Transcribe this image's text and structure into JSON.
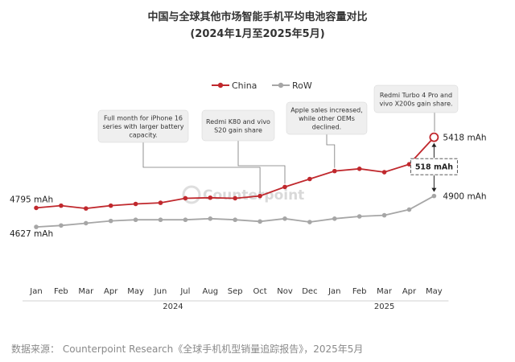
{
  "title": "中国与全球其他市场智能手机平均电池容量对比",
  "subtitle": "(2024年1月至2025年5月)",
  "watermark": "Counterpoint",
  "source": "数据来源： Counterpoint Research《全球手机机型销量追踪报告》，2025年5月",
  "chart_data": {
    "type": "line",
    "categories": [
      "Jan",
      "Feb",
      "Mar",
      "Apr",
      "May",
      "Jun",
      "Jul",
      "Aug",
      "Sep",
      "Oct",
      "Nov",
      "Dec",
      "Jan",
      "Feb",
      "Mar",
      "Apr",
      "May"
    ],
    "years": [
      {
        "label": "2024",
        "start": 0,
        "end": 11
      },
      {
        "label": "2025",
        "start": 12,
        "end": 16
      }
    ],
    "ylim": [
      4500,
      5600
    ],
    "grid": false,
    "legend_position": "top-left",
    "series": [
      {
        "name": "China",
        "color": "#c0282d",
        "values": [
          4795,
          4815,
          4790,
          4815,
          4830,
          4840,
          4880,
          4885,
          4880,
          4900,
          4980,
          5050,
          5120,
          5140,
          5110,
          5180,
          5418
        ]
      },
      {
        "name": "RoW",
        "color": "#a6a6a6",
        "values": [
          4627,
          4640,
          4660,
          4680,
          4690,
          4690,
          4690,
          4700,
          4690,
          4675,
          4700,
          4670,
          4700,
          4720,
          4730,
          4780,
          4900
        ]
      }
    ],
    "start_labels": [
      "4795 mAh",
      "4627 mAh"
    ],
    "end_labels": [
      "5418 mAh",
      "4900 mAh"
    ],
    "difference_label": "518 mAh",
    "annotations": [
      {
        "index": 9,
        "series": 0,
        "lines": [
          "Full month for iPhone 16",
          "series with larger battery",
          "capacity."
        ]
      },
      {
        "index": 10,
        "series": 0,
        "lines": [
          "Redmi K80 and vivo",
          "S20 gain share"
        ]
      },
      {
        "index": 12,
        "series": 0,
        "lines": [
          "Apple sales increased,",
          "while other OEMs",
          "declined."
        ]
      },
      {
        "index": 16,
        "series": 0,
        "lines": [
          "Redmi Turbo 4 Pro and",
          "vivo X200s gain share."
        ]
      }
    ]
  }
}
